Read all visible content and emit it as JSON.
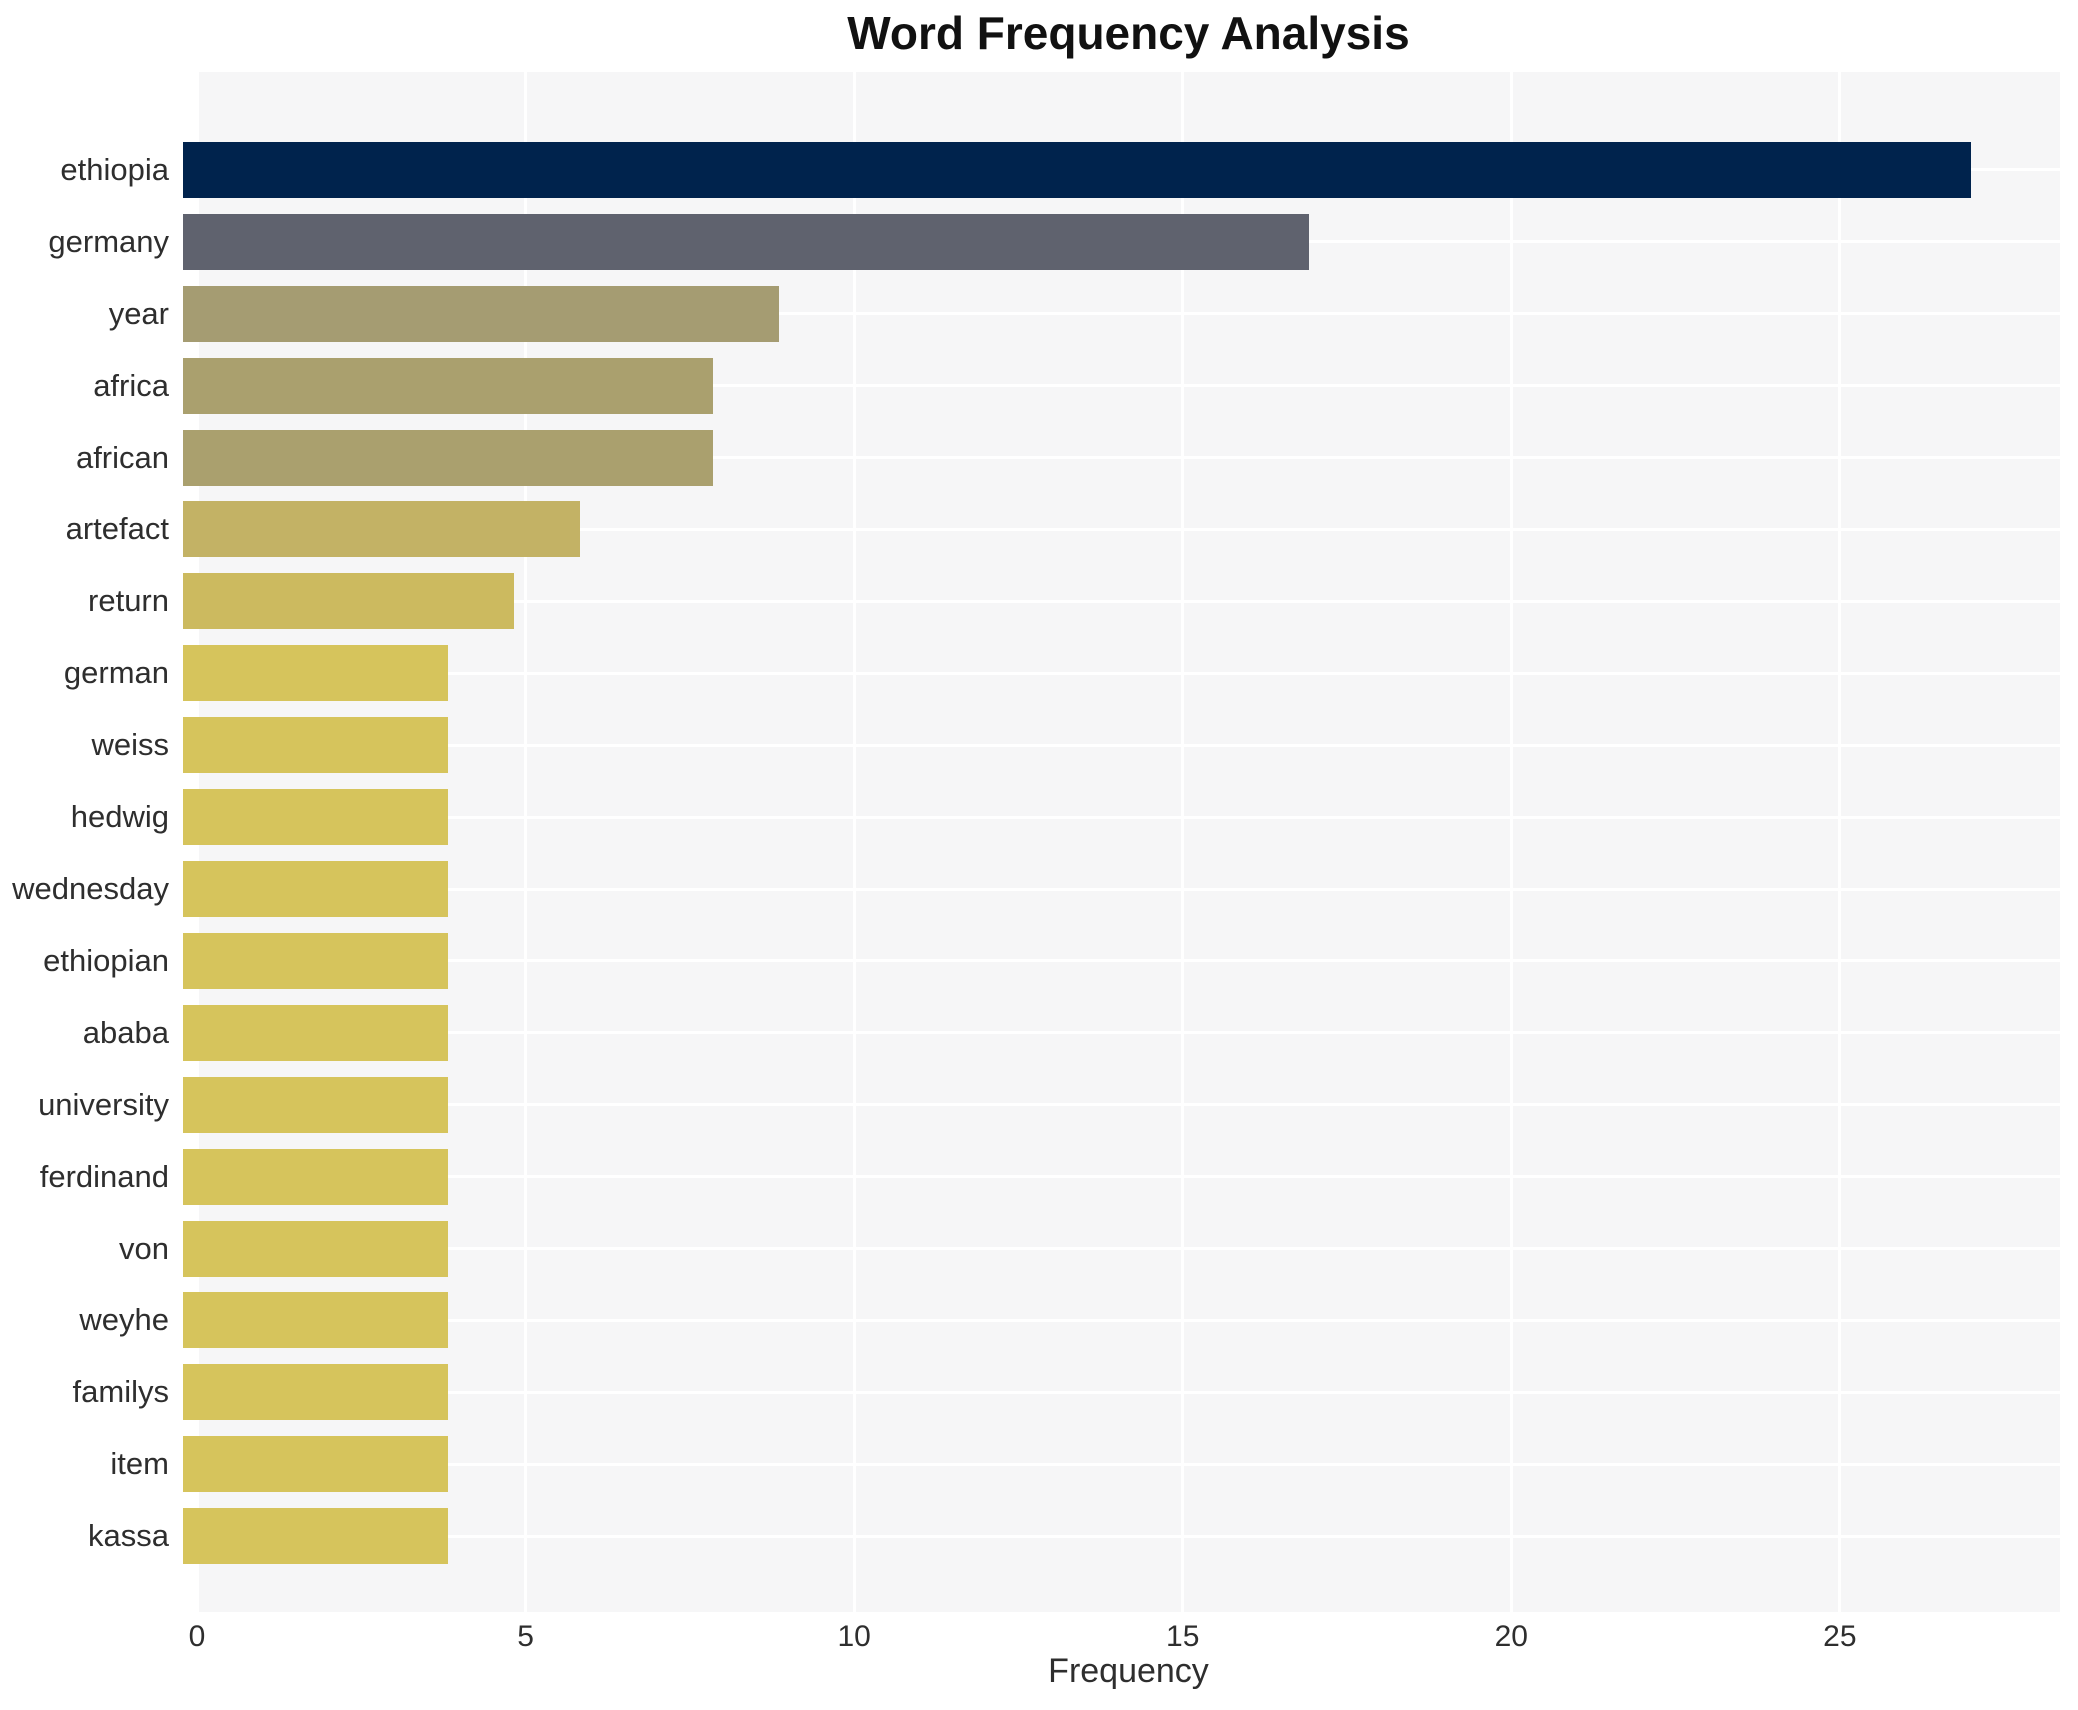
{
  "title": "Word Frequency Analysis",
  "chart_data": {
    "type": "bar",
    "orientation": "horizontal",
    "title": "Word Frequency Analysis",
    "xlabel": "Frequency",
    "ylabel": "",
    "categories": [
      "ethiopia",
      "germany",
      "year",
      "africa",
      "african",
      "artefact",
      "return",
      "german",
      "weiss",
      "hedwig",
      "wednesday",
      "ethiopian",
      "ababa",
      "university",
      "ferdinand",
      "von",
      "weyhe",
      "familys",
      "item",
      "kassa"
    ],
    "values": [
      27,
      17,
      9,
      8,
      8,
      6,
      5,
      4,
      4,
      4,
      4,
      4,
      4,
      4,
      4,
      4,
      4,
      4,
      4,
      4
    ],
    "bar_colors": [
      "#00234d",
      "#5f626e",
      "#a59c72",
      "#aaa06e",
      "#aaa06e",
      "#c3b265",
      "#ccba5f",
      "#d6c45c",
      "#d6c45c",
      "#d6c45c",
      "#d6c45c",
      "#d6c45c",
      "#d6c45c",
      "#d6c45c",
      "#d6c45c",
      "#d6c45c",
      "#d6c45c",
      "#d6c45c",
      "#d6c45c",
      "#d6c45c"
    ],
    "xticks": [
      0,
      5,
      10,
      15,
      20,
      25
    ],
    "xlim": [
      0,
      28.35
    ],
    "grid": true,
    "legend": "none",
    "panel_bg": "#f6f6f7",
    "grid_color": "#ffffff",
    "text_color": "#2e2e2e",
    "title_color": "#111111"
  }
}
